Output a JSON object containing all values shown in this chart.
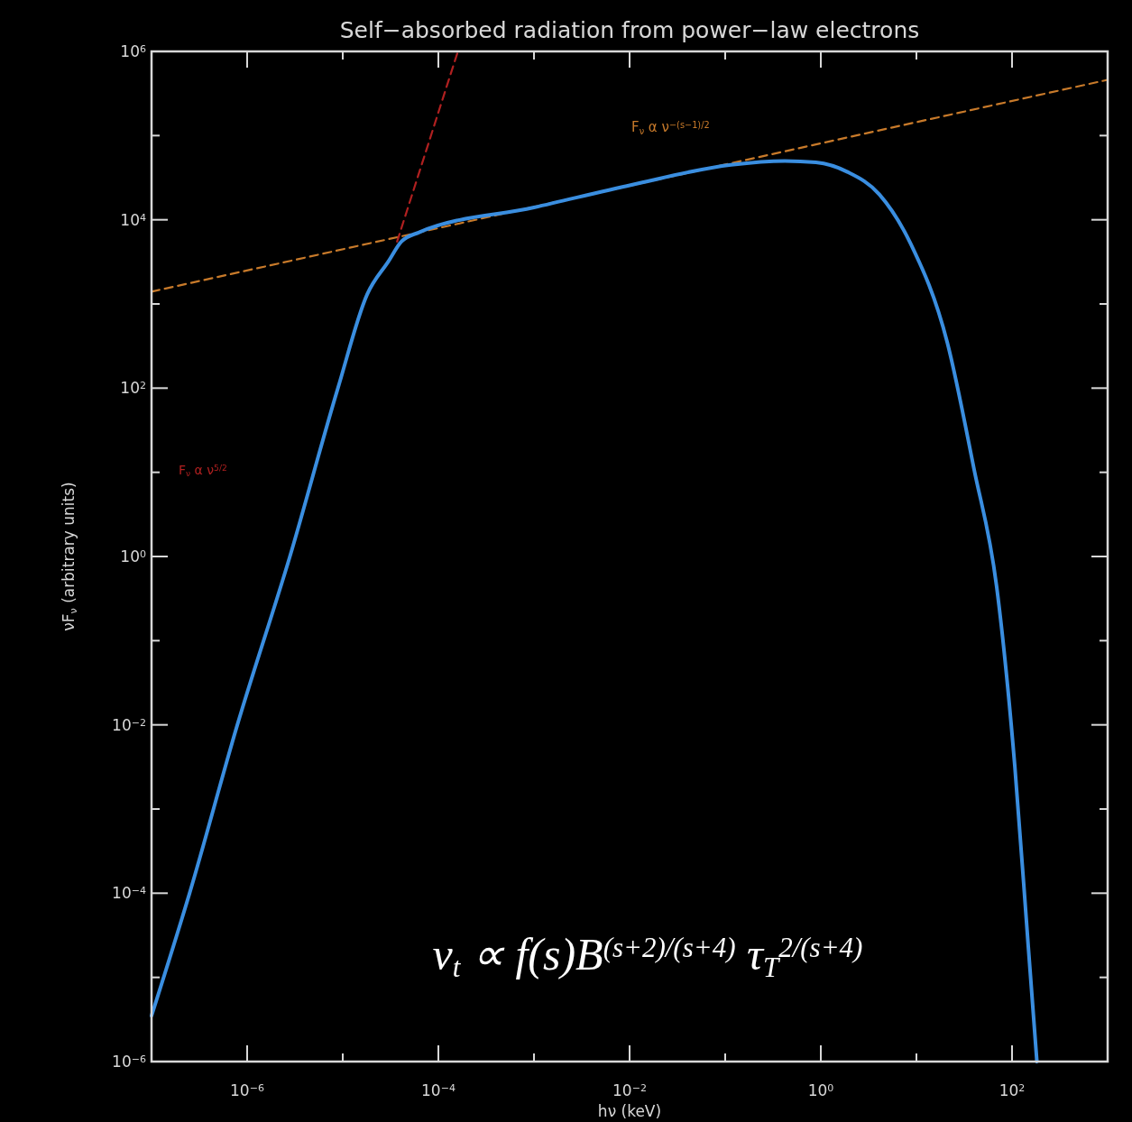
{
  "chart_data": {
    "type": "line",
    "title": "Self−absorbed radiation from power−law electrons",
    "xlabel": "hν (keV)",
    "ylabel": "νF$_{ν}$ (arbitrary units)",
    "log": "xy",
    "xlim": [
      1e-07,
      1000
    ],
    "ylim": [
      1e-06,
      1000000
    ],
    "xticks": [
      {
        "value": 1e-07,
        "label": null
      },
      {
        "value": 1e-06,
        "label": "10$^{−6}$"
      },
      {
        "value": 1e-05,
        "label": null
      },
      {
        "value": 0.0001,
        "label": "10$^{−4}$"
      },
      {
        "value": 0.001,
        "label": null
      },
      {
        "value": 0.01,
        "label": "10$^{−2}$"
      },
      {
        "value": 0.1,
        "label": null
      },
      {
        "value": 1,
        "label": "10$^{0}$"
      },
      {
        "value": 10,
        "label": null
      },
      {
        "value": 100,
        "label": "10$^{2}$"
      }
    ],
    "yticks": [
      {
        "value": 1e-06,
        "label": "10$^{−6}$"
      },
      {
        "value": 1e-05,
        "label": null
      },
      {
        "value": 0.0001,
        "label": "10$^{−4}$"
      },
      {
        "value": 0.001,
        "label": null
      },
      {
        "value": 0.01,
        "label": "10$^{−2}$"
      },
      {
        "value": 0.1,
        "label": null
      },
      {
        "value": 1,
        "label": "10$^{0}$"
      },
      {
        "value": 10,
        "label": null
      },
      {
        "value": 100,
        "label": "10$^{2}$"
      },
      {
        "value": 1000,
        "label": null
      },
      {
        "value": 10000,
        "label": "10$^{4}$"
      },
      {
        "value": 100000,
        "label": null
      },
      {
        "value": 1000000,
        "label": "10$^{6}$"
      }
    ],
    "series": [
      {
        "color": "#3a8ee0",
        "line_style": "solid",
        "x": [
          1e-07,
          2.5e-07,
          7.9e-07,
          2.8e-06,
          8.9e-06,
          1.8e-05,
          3e-05,
          4.1e-05,
          6.3e-05,
          0.001,
          0.0105,
          0.115,
          0.42,
          0.89,
          1.9,
          4.1,
          8.7,
          21,
          40,
          69,
          107,
          148,
          182
        ],
        "values": [
          3.5e-06,
          0.0001,
          0.01,
          1,
          100,
          1300,
          3200,
          5500,
          7100,
          14000,
          26000,
          45000,
          50000,
          48000,
          37000,
          20000,
          5200,
          350,
          11,
          0.44,
          0.0032,
          2.3e-05,
          1e-06
        ]
      },
      {
        "color": "#c87a2a",
        "line_style": "dashed",
        "x": [
          1e-07,
          1000
        ],
        "values": [
          1400,
          460000
        ]
      },
      {
        "color": "#b02020",
        "line_style": "dashed",
        "x": [
          3.7e-05,
          0.00016
        ],
        "values": [
          5500,
          1000000
        ]
      }
    ],
    "annotations": [
      "F$_{ν}$ α ν$^{−(s−1)/2}$",
      "F$_{ν}$ α ν$^{5/2}$",
      "ν$_{t}$ ∝ f(s)B$^{(s+2)/(s+4)}$ τ$_{T}$$^{2/(s+4)}$"
    ]
  }
}
